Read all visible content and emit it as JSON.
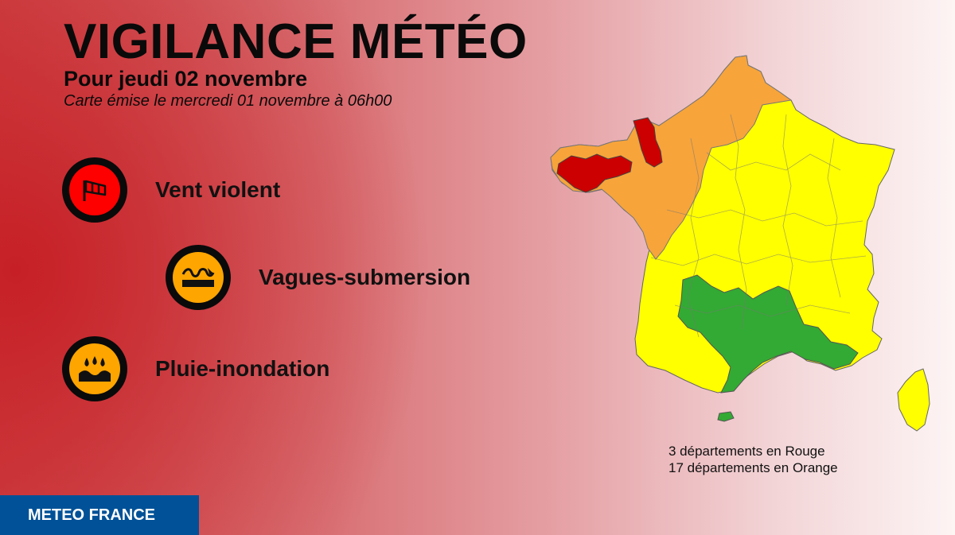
{
  "header": {
    "title": "VIGILANCE MÉTÉO",
    "subtitle": "Pour jeudi 02 novembre",
    "issued": "Carte émise le mercredi 01 novembre à 06h00"
  },
  "hazards": [
    {
      "label": "Vent violent",
      "icon": "windsock-icon",
      "level_color": "#ff0000"
    },
    {
      "label": "Vagues-submersion",
      "icon": "waves-icon",
      "level_color": "#ffa500"
    },
    {
      "label": "Pluie-inondation",
      "icon": "rain-flood-icon",
      "level_color": "#ffa500"
    }
  ],
  "map": {
    "colors": {
      "red": "#cc0000",
      "orange": "#f7a43a",
      "yellow": "#ffff00",
      "green": "#33aa33"
    }
  },
  "stats": {
    "line1": "3 départements en Rouge",
    "line2": "17 départements en Orange"
  },
  "footer": {
    "brand": "METEO FRANCE",
    "brand_color": "#005197"
  }
}
